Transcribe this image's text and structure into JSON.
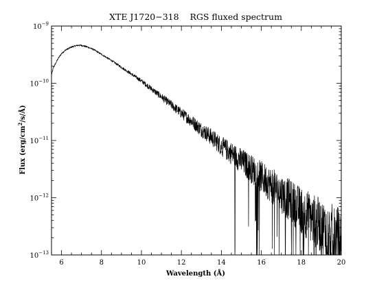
{
  "chart_data": {
    "type": "line",
    "title": "XTE J1720−318    RGS fluxed spectrum",
    "xlabel": "Wavelength (Å)",
    "ylabel": "Flux (erg/cm²/s/Å)",
    "xlim": [
      5.5,
      20
    ],
    "ylim": [
      1e-13,
      1e-09
    ],
    "yscale": "log",
    "grid": false,
    "legend": "none",
    "line_color": "#000000",
    "xticks": [
      {
        "value": 6,
        "label": "6"
      },
      {
        "value": 8,
        "label": "8"
      },
      {
        "value": 10,
        "label": "10"
      },
      {
        "value": 12,
        "label": "12"
      },
      {
        "value": 14,
        "label": "14"
      },
      {
        "value": 16,
        "label": "16"
      },
      {
        "value": 18,
        "label": "18"
      },
      {
        "value": 20,
        "label": "20"
      }
    ],
    "yticks": [
      {
        "value": 1e-09,
        "label": "10",
        "exp": "−9"
      },
      {
        "value": 1e-10,
        "label": "10",
        "exp": "−10"
      },
      {
        "value": 1e-11,
        "label": "10",
        "exp": "−11"
      },
      {
        "value": 1e-12,
        "label": "10",
        "exp": "−12"
      },
      {
        "value": 1e-13,
        "label": "10",
        "exp": "−13"
      }
    ],
    "series": [
      {
        "x": [
          5.5,
          5.6,
          5.7,
          5.8,
          6.0,
          6.2,
          6.5,
          6.8,
          7.0,
          7.3,
          7.6,
          8.0,
          8.5,
          9.0,
          9.5,
          10.0,
          10.5,
          11.0,
          11.5,
          12.0,
          12.5,
          13.0,
          13.5,
          14.0,
          14.5,
          15.0,
          15.5,
          16.0,
          16.5,
          17.0,
          17.5,
          18.0,
          18.5,
          19.0,
          19.5,
          20.0
        ],
        "y": [
          1.4e-10,
          1.9e-10,
          2.2e-10,
          2.6e-10,
          3.3e-10,
          3.8e-10,
          4.3e-10,
          4.6e-10,
          4.6e-10,
          4.3e-10,
          3.9e-10,
          3.2e-10,
          2.5e-10,
          1.9e-10,
          1.45e-10,
          1.1e-10,
          8e-11,
          5.8e-11,
          4.2e-11,
          3e-11,
          2.2e-11,
          1.55e-11,
          1.15e-11,
          8e-12,
          6e-12,
          4.4e-12,
          3.2e-12,
          2.3e-12,
          1.65e-12,
          1.2e-12,
          8.5e-13,
          6e-13,
          4.4e-13,
          3.2e-13,
          2.4e-13,
          1.8e-13
        ]
      }
    ]
  }
}
